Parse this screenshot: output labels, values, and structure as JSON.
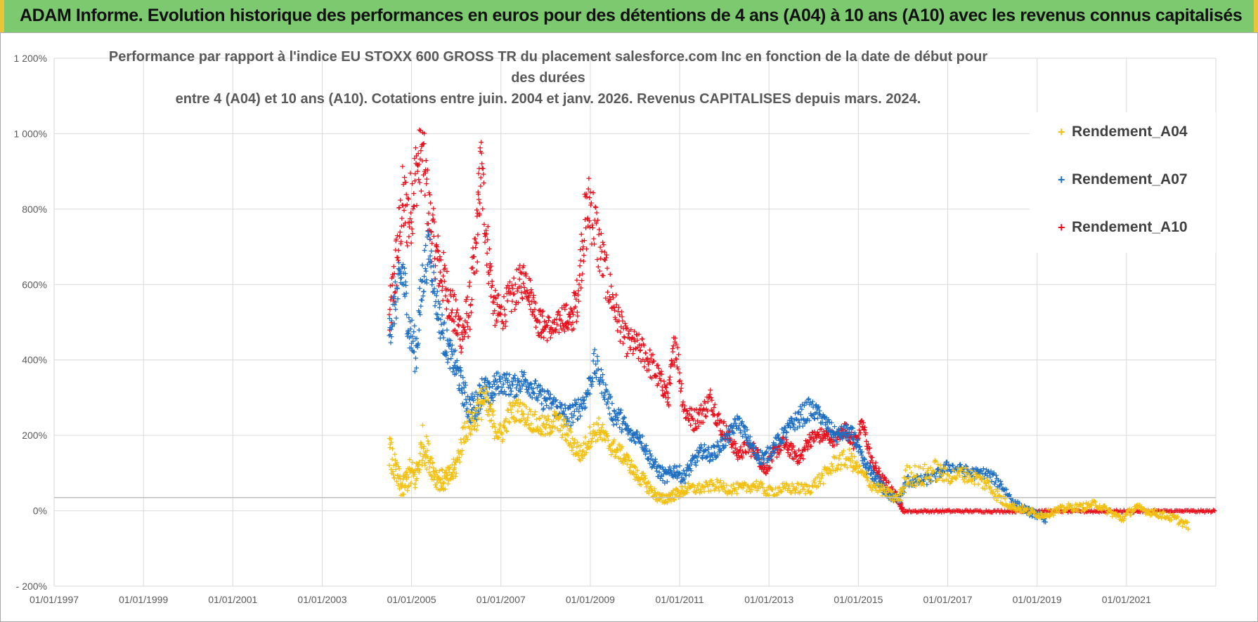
{
  "banner": {
    "title": "ADAM Informe. Evolution historique des performances en euros pour des détentions de 4 ans (A04) à 10 ans (A10) avec les revenus connus capitalisés"
  },
  "chart_data": {
    "type": "scatter",
    "title_line1": "Performance par rapport à l'indice EU STOXX 600 GROSS TR  du placement salesforce.com Inc en fonction de la date de début pour des durées",
    "title_line2": "entre 4 (A04) et 10 ans (A10). Cotations entre juin. 2004 et janv. 2026. Revenus CAPITALISES depuis mars. 2024.",
    "xlabel": "",
    "ylabel": "",
    "xlim": [
      1997.0,
      2023.0
    ],
    "ylim": [
      -200,
      1200
    ],
    "y_ticks": [
      -200,
      0,
      200,
      400,
      600,
      800,
      1000,
      1200
    ],
    "y_tick_labels": [
      "- 200%",
      "0%",
      "200%",
      "400%",
      "600%",
      "800%",
      "1 000%",
      "1 200%"
    ],
    "x_ticks": [
      1997,
      1999,
      2001,
      2003,
      2005,
      2007,
      2009,
      2011,
      2013,
      2015,
      2017,
      2019,
      2021
    ],
    "x_tick_labels": [
      "01/01/1997",
      "01/01/1999",
      "01/01/2001",
      "01/01/2003",
      "01/01/2005",
      "01/01/2007",
      "01/01/2009",
      "01/01/2011",
      "01/01/2013",
      "01/01/2015",
      "01/01/2017",
      "01/01/2019",
      "01/01/2021"
    ],
    "reference_line_y": 35,
    "grid": true,
    "legend_position": "top-right",
    "series": [
      {
        "name": "Rendement_A10",
        "color": "#e8101c",
        "x": [
          2004.5,
          2004.65,
          2004.8,
          2004.95,
          2005.1,
          2005.25,
          2005.4,
          2005.55,
          2005.7,
          2005.85,
          2006.0,
          2006.15,
          2006.3,
          2006.45,
          2006.55,
          2006.7,
          2006.85,
          2007.0,
          2007.2,
          2007.4,
          2007.55,
          2007.7,
          2007.85,
          2008.0,
          2008.2,
          2008.4,
          2008.55,
          2008.7,
          2008.85,
          2009.0,
          2009.2,
          2009.4,
          2009.6,
          2009.8,
          2010.0,
          2010.2,
          2010.4,
          2010.6,
          2010.75,
          2010.9,
          2011.1,
          2011.3,
          2011.5,
          2011.7,
          2011.9,
          2012.1,
          2012.3,
          2012.5,
          2012.7,
          2012.9,
          2013.1,
          2013.3,
          2013.5,
          2013.7,
          2013.9,
          2014.1,
          2014.3,
          2014.5,
          2014.7,
          2014.9,
          2015.1,
          2015.3,
          2015.5,
          2015.7,
          2015.9,
          2016.0,
          2016.5,
          2017.0,
          2017.5,
          2018.0,
          2018.5,
          2019.0,
          2019.5,
          2020.0,
          2020.5,
          2021.0,
          2021.5,
          2022.0,
          2022.5,
          2023.0
        ],
        "y": [
          500,
          650,
          820,
          780,
          900,
          950,
          780,
          680,
          620,
          560,
          500,
          470,
          540,
          700,
          920,
          700,
          540,
          520,
          560,
          600,
          620,
          560,
          500,
          490,
          480,
          520,
          500,
          560,
          740,
          820,
          700,
          600,
          520,
          450,
          440,
          420,
          380,
          340,
          300,
          460,
          270,
          240,
          260,
          300,
          230,
          200,
          150,
          170,
          160,
          110,
          150,
          180,
          160,
          140,
          190,
          200,
          200,
          190,
          220,
          180,
          230,
          130,
          90,
          60,
          30,
          0,
          0,
          0,
          0,
          0,
          0,
          0,
          0,
          0,
          0,
          0,
          0,
          0,
          0,
          0
        ],
        "spread": [
          70,
          90,
          100,
          110,
          100,
          90,
          90,
          80,
          80,
          60,
          60,
          60,
          70,
          90,
          100,
          80,
          50,
          50,
          50,
          50,
          50,
          40,
          40,
          40,
          30,
          40,
          40,
          60,
          90,
          100,
          80,
          60,
          50,
          40,
          40,
          40,
          40,
          30,
          30,
          50,
          30,
          30,
          30,
          30,
          30,
          20,
          20,
          20,
          20,
          20,
          20,
          20,
          20,
          20,
          20,
          20,
          20,
          20,
          20,
          20,
          20,
          20,
          15,
          15,
          10,
          3,
          3,
          3,
          3,
          3,
          3,
          3,
          3,
          3,
          3,
          3,
          3,
          3,
          3,
          3
        ]
      },
      {
        "name": "Rendement_A07",
        "color": "#1f6fc2",
        "x": [
          2004.5,
          2004.65,
          2004.8,
          2004.95,
          2005.1,
          2005.25,
          2005.4,
          2005.55,
          2005.7,
          2005.85,
          2006.0,
          2006.15,
          2006.3,
          2006.45,
          2006.6,
          2006.75,
          2006.9,
          2007.1,
          2007.3,
          2007.5,
          2007.7,
          2007.9,
          2008.1,
          2008.3,
          2008.5,
          2008.7,
          2008.9,
          2009.1,
          2009.3,
          2009.5,
          2009.7,
          2009.9,
          2010.1,
          2010.3,
          2010.5,
          2010.7,
          2010.9,
          2011.1,
          2011.3,
          2011.5,
          2011.7,
          2011.9,
          2012.1,
          2012.3,
          2012.5,
          2012.7,
          2012.9,
          2013.1,
          2013.3,
          2013.5,
          2013.7,
          2013.9,
          2014.1,
          2014.3,
          2014.5,
          2014.7,
          2014.9,
          2015.1,
          2015.3,
          2015.5,
          2015.7,
          2015.9,
          2016.1,
          2016.4,
          2016.7,
          2017.0,
          2017.3,
          2017.6,
          2017.9,
          2018.2,
          2018.5,
          2018.8,
          2019.0,
          2019.2
        ],
        "y": [
          480,
          560,
          640,
          480,
          420,
          620,
          700,
          560,
          470,
          420,
          380,
          320,
          270,
          280,
          330,
          300,
          340,
          340,
          330,
          350,
          330,
          300,
          290,
          270,
          250,
          270,
          300,
          390,
          330,
          260,
          240,
          200,
          200,
          150,
          110,
          90,
          110,
          90,
          130,
          160,
          150,
          170,
          200,
          240,
          200,
          150,
          140,
          170,
          200,
          230,
          250,
          270,
          260,
          230,
          200,
          210,
          200,
          130,
          100,
          70,
          40,
          30,
          80,
          80,
          90,
          120,
          110,
          100,
          100,
          70,
          20,
          0,
          -10,
          -20
        ],
        "spread": [
          50,
          60,
          70,
          60,
          60,
          70,
          60,
          50,
          50,
          40,
          40,
          40,
          40,
          40,
          40,
          40,
          30,
          30,
          30,
          30,
          30,
          30,
          30,
          30,
          30,
          30,
          30,
          40,
          30,
          30,
          30,
          20,
          20,
          20,
          20,
          20,
          20,
          20,
          20,
          20,
          20,
          20,
          20,
          20,
          20,
          20,
          20,
          20,
          20,
          20,
          30,
          30,
          20,
          20,
          20,
          20,
          20,
          20,
          15,
          15,
          10,
          10,
          15,
          15,
          15,
          15,
          15,
          15,
          15,
          15,
          10,
          10,
          10,
          10
        ]
      },
      {
        "name": "Rendement_A04",
        "color": "#f2c012",
        "x": [
          2004.5,
          2004.65,
          2004.8,
          2004.95,
          2005.1,
          2005.25,
          2005.4,
          2005.55,
          2005.7,
          2005.85,
          2006.0,
          2006.2,
          2006.4,
          2006.6,
          2006.8,
          2007.0,
          2007.2,
          2007.4,
          2007.6,
          2007.8,
          2008.0,
          2008.2,
          2008.4,
          2008.6,
          2008.8,
          2009.0,
          2009.2,
          2009.4,
          2009.6,
          2009.8,
          2010.0,
          2010.2,
          2010.4,
          2010.6,
          2010.8,
          2011.0,
          2011.2,
          2011.5,
          2011.8,
          2012.1,
          2012.4,
          2012.7,
          2013.0,
          2013.3,
          2013.6,
          2013.9,
          2014.2,
          2014.5,
          2014.8,
          2015.0,
          2015.3,
          2015.6,
          2015.9,
          2016.1,
          2016.4,
          2016.7,
          2017.0,
          2017.3,
          2017.6,
          2017.9,
          2018.2,
          2018.5,
          2018.8,
          2019.1,
          2019.4,
          2019.7,
          2020.0,
          2020.3,
          2020.6,
          2020.9,
          2021.2,
          2021.5,
          2021.8,
          2022.1,
          2022.4
        ],
        "y": [
          160,
          100,
          60,
          100,
          90,
          180,
          140,
          90,
          80,
          90,
          120,
          220,
          240,
          300,
          240,
          200,
          260,
          270,
          250,
          230,
          220,
          240,
          220,
          180,
          150,
          200,
          220,
          180,
          160,
          140,
          100,
          80,
          50,
          30,
          40,
          50,
          60,
          60,
          70,
          60,
          60,
          70,
          50,
          60,
          60,
          60,
          90,
          130,
          140,
          110,
          70,
          50,
          30,
          100,
          90,
          110,
          90,
          100,
          90,
          70,
          30,
          10,
          0,
          -10,
          0,
          10,
          10,
          20,
          0,
          -20,
          10,
          0,
          -10,
          -20,
          -40
        ],
        "spread": [
          50,
          40,
          30,
          40,
          40,
          50,
          40,
          30,
          30,
          30,
          30,
          40,
          40,
          50,
          40,
          30,
          30,
          30,
          30,
          30,
          30,
          30,
          30,
          30,
          25,
          30,
          30,
          25,
          25,
          20,
          20,
          20,
          15,
          15,
          15,
          15,
          15,
          15,
          15,
          15,
          15,
          15,
          15,
          15,
          15,
          15,
          20,
          25,
          25,
          20,
          15,
          15,
          15,
          30,
          30,
          30,
          20,
          20,
          20,
          20,
          15,
          10,
          10,
          10,
          10,
          10,
          10,
          10,
          10,
          10,
          10,
          10,
          10,
          10,
          10
        ]
      }
    ],
    "legend_order": [
      "Rendement_A04",
      "Rendement_A07",
      "Rendement_A10"
    ]
  }
}
